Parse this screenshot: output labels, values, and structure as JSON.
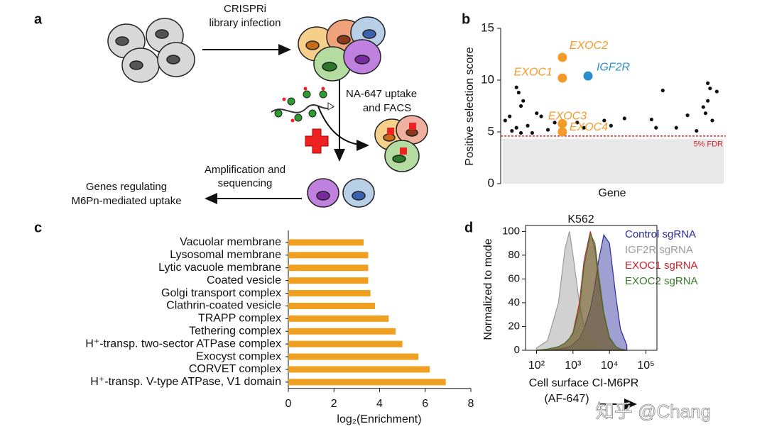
{
  "diagram": {
    "panel": "a",
    "steps": [
      [
        "CRISPRi",
        "library infection"
      ],
      [
        "NA-647 uptake",
        "and FACS"
      ],
      [
        "Amplification and",
        "sequencing"
      ],
      [
        "Genes regulating",
        "M6Pn-mediated uptake"
      ]
    ]
  },
  "chart_data": [
    {
      "panel": "b",
      "type": "scatter",
      "ylabel": "Positive selection score",
      "xlabel": "Gene",
      "xlim": [
        0,
        100
      ],
      "ylim": [
        0,
        15
      ],
      "yticks": [
        0,
        5,
        10,
        15
      ],
      "points": {
        "color": "#111111",
        "x": [
          2,
          4,
          7,
          8,
          9,
          10,
          5,
          7,
          9,
          12,
          14,
          16,
          18,
          21,
          24,
          27,
          34,
          37,
          46,
          49,
          55,
          67,
          69,
          72,
          78,
          83,
          87,
          90,
          91,
          92,
          92,
          93,
          96,
          94
        ],
        "y": [
          6.1,
          6.5,
          9.3,
          8.8,
          7.5,
          8.0,
          5.1,
          5.4,
          4.9,
          5.6,
          4.9,
          6.8,
          6.5,
          5.2,
          5.9,
          5.1,
          5.9,
          5.4,
          6.1,
          5.6,
          6.3,
          6.2,
          5.4,
          9.0,
          5.4,
          6.6,
          5.1,
          7.4,
          6.8,
          8.0,
          9.7,
          9.2,
          8.9,
          6.1
        ]
      },
      "highlights": [
        {
          "label": "EXOC2",
          "x": 27.4,
          "y": 12.2,
          "color": "#f39a2a"
        },
        {
          "label": "EXOC1",
          "x": 27.4,
          "y": 10.2,
          "color": "#f39a2a"
        },
        {
          "label": "IGF2R",
          "x": 38.8,
          "y": 10.4,
          "color": "#2a8fd0"
        },
        {
          "label": "EXOC3",
          "x": 27.4,
          "y": 5.8,
          "color": "#f39a2a"
        },
        {
          "label": "EXOC4",
          "x": 27.4,
          "y": 5.0,
          "color": "#f39a2a"
        }
      ],
      "threshold": {
        "value": 4.6,
        "label": "5% FDR",
        "color": "#d8202a"
      }
    },
    {
      "panel": "c",
      "type": "bar",
      "orientation": "horizontal",
      "xlabel": "log₂(Enrichment)",
      "color": "#f0a020",
      "categories": [
        "Vacuolar membrane",
        "Lysosomal membrane",
        "Lytic vacuole membrane",
        "Coated vesicle",
        "Golgi transport complex",
        "Clathrin-coated vesicle",
        "TRAPP complex",
        "Tethering complex",
        "H⁺-transp. two-sector ATPase complex",
        "Exocyst complex",
        "CORVET complex",
        "H⁺-transp. V-type ATPase, V1 domain"
      ],
      "values": [
        3.3,
        3.5,
        3.5,
        3.5,
        3.6,
        3.8,
        4.4,
        4.7,
        5.0,
        5.7,
        6.2,
        6.9
      ],
      "xlim": [
        0,
        8
      ],
      "xticks": [
        0,
        2,
        4,
        6,
        8
      ]
    },
    {
      "panel": "d",
      "type": "area",
      "title": "K562",
      "ylabel": "Normalized to mode",
      "xlabel": [
        "Cell surface CI-M6PR",
        "(AF-647)"
      ],
      "xscale": "log",
      "xlim": [
        50,
        200000
      ],
      "xticks": [
        {
          "value": 100,
          "label": "10²"
        },
        {
          "value": 1000,
          "label": "10³"
        },
        {
          "value": 10000,
          "label": "10⁴"
        },
        {
          "value": 100000,
          "label": "10⁵"
        }
      ],
      "ylim": [
        0,
        105
      ],
      "yticks": [
        0,
        20,
        40,
        60,
        80,
        100
      ],
      "x": [
        100,
        200,
        400,
        600,
        800,
        1000,
        1500,
        2000,
        3000,
        4000,
        5000,
        7000,
        10000,
        15000,
        20000,
        30000
      ],
      "series": [
        {
          "name": "Control sgRNA",
          "color": "#2b2b9a",
          "values": [
            0,
            0,
            1,
            2,
            3,
            5,
            10,
            18,
            35,
            55,
            75,
            97,
            90,
            45,
            18,
            4
          ]
        },
        {
          "name": "IGF2R sgRNA",
          "color": "#9a9a9a",
          "values": [
            2,
            8,
            40,
            85,
            100,
            80,
            40,
            20,
            8,
            3,
            1,
            0,
            0,
            0,
            0,
            0
          ]
        },
        {
          "name": "EXOC1 sgRNA",
          "color": "#d0202a",
          "values": [
            0,
            1,
            3,
            6,
            10,
            15,
            40,
            75,
            100,
            85,
            60,
            30,
            10,
            3,
            1,
            0
          ]
        },
        {
          "name": "EXOC2 sgRNA",
          "color": "#3a7a2a",
          "values": [
            0,
            1,
            3,
            6,
            10,
            14,
            35,
            70,
            98,
            90,
            65,
            32,
            11,
            3,
            1,
            0
          ]
        }
      ]
    }
  ],
  "watermark": "知乎 @Chang"
}
